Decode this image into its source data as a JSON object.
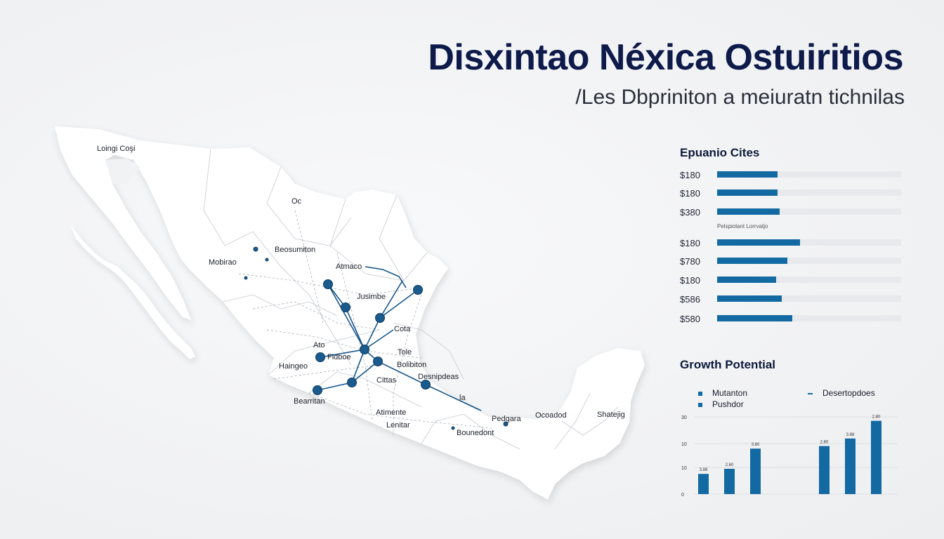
{
  "header": {
    "title": "Disxintao Néxica Ostuiritios",
    "subtitle": "/Les Dbpriniton a meiuratn tichnilas"
  },
  "map": {
    "labels": [
      "Loingi Coşi",
      "Oc",
      "Beosumiton",
      "Mobirao",
      "Atmaco",
      "Jusimbe",
      "Cota",
      "Ato",
      "Fidboe",
      "Tole",
      "Haingeo",
      "Bolibiton",
      "Cittas",
      "Desnipdeas",
      "Bearritan",
      "la",
      "Atimente",
      "Lenitar",
      "Pedgara",
      "Ocoadod",
      "Bounedont",
      "Shatejig"
    ]
  },
  "cities_panel": {
    "title": "Epuanio Cites",
    "caption": "Pelspiolant Lorrvatjo",
    "rows": [
      {
        "label": "$180",
        "fill": 0.33
      },
      {
        "label": "$180",
        "fill": 0.33
      },
      {
        "label": "$380",
        "fill": 0.34
      },
      {
        "label": "$180",
        "fill": 0.45
      },
      {
        "label": "$780",
        "fill": 0.38
      },
      {
        "label": "$180",
        "fill": 0.32
      },
      {
        "label": "$586",
        "fill": 0.35
      },
      {
        "label": "$580",
        "fill": 0.41
      }
    ]
  },
  "growth_panel": {
    "title": "Growth Potential",
    "legend": {
      "series_a": "Mutanton",
      "series_b": "Pushdor",
      "series_c": "Desertopdoes"
    },
    "colors": {
      "bar": "#136aa2",
      "axis": "#c9ccd2"
    }
  },
  "chart_data": {
    "type": "bar",
    "title": "Growth Potential",
    "ylim": [
      0,
      30
    ],
    "y_ticks": [
      "0",
      "10",
      "10",
      "30"
    ],
    "groups": [
      {
        "values": [
          8,
          10,
          18
        ],
        "labels": [
          "3.88",
          "2.60",
          "3.80"
        ]
      },
      {
        "values": [
          19,
          22,
          29
        ],
        "labels": [
          "2.80",
          "3.88",
          "2.80"
        ]
      }
    ]
  }
}
